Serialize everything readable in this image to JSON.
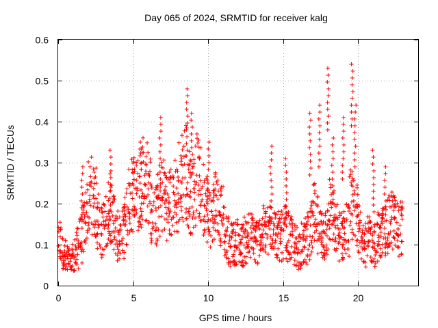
{
  "chart_data": {
    "type": "scatter",
    "title": "Day 065 of 2024, SRMTID for receiver kalg",
    "xlabel": "GPS time / hours",
    "ylabel": "SRMTID / TECUs",
    "xlim": [
      0,
      24
    ],
    "ylim": [
      0,
      0.6
    ],
    "xticks": [
      0,
      5,
      10,
      15,
      20
    ],
    "yticks": [
      0,
      0.1,
      0.2,
      0.3,
      0.4,
      0.5,
      0.6
    ],
    "xtick_labels": [
      "0",
      "5",
      "10",
      "15",
      "20"
    ],
    "ytick_labels": [
      "0",
      "0.1",
      "0.2",
      "0.3",
      "0.4",
      "0.5",
      "0.6"
    ],
    "grid": true,
    "marker": "+",
    "series": [
      {
        "name": "SRMTID",
        "color": "#ff0000",
        "x": [
          0.0,
          0.2,
          0.4,
          0.6,
          0.8,
          1.0,
          1.2,
          1.4,
          1.6,
          1.8,
          2.0,
          2.2,
          2.4,
          2.6,
          2.8,
          3.0,
          3.2,
          3.4,
          3.6,
          3.8,
          4.0,
          4.2,
          4.4,
          4.6,
          4.8,
          5.0,
          5.2,
          5.4,
          5.6,
          5.8,
          6.0,
          6.2,
          6.4,
          6.6,
          6.8,
          7.0,
          7.2,
          7.4,
          7.6,
          7.8,
          8.0,
          8.2,
          8.4,
          8.6,
          8.8,
          9.0,
          9.2,
          9.4,
          9.6,
          9.8,
          10.0,
          10.2,
          10.4,
          10.6,
          10.8,
          11.0,
          11.2,
          11.4,
          11.6,
          11.8,
          12.0,
          12.2,
          12.4,
          12.6,
          12.8,
          13.0,
          13.2,
          13.4,
          13.6,
          13.8,
          14.0,
          14.2,
          14.4,
          14.6,
          14.8,
          15.0,
          15.2,
          15.4,
          15.6,
          15.8,
          16.0,
          16.2,
          16.4,
          16.6,
          16.8,
          17.0,
          17.2,
          17.4,
          17.6,
          17.8,
          18.0,
          18.2,
          18.4,
          18.6,
          18.8,
          19.0,
          19.2,
          19.4,
          19.6,
          19.8,
          20.0,
          20.2,
          20.4,
          20.6,
          20.8,
          21.0,
          21.2,
          21.4,
          21.6,
          21.8,
          22.0,
          22.2,
          22.4,
          22.6,
          22.8
        ],
        "values": [
          0.1,
          0.08,
          0.07,
          0.06,
          0.06,
          0.07,
          0.09,
          0.11,
          0.14,
          0.18,
          0.21,
          0.22,
          0.2,
          0.16,
          0.13,
          0.15,
          0.18,
          0.19,
          0.16,
          0.12,
          0.11,
          0.13,
          0.17,
          0.2,
          0.23,
          0.24,
          0.22,
          0.25,
          0.27,
          0.26,
          0.22,
          0.18,
          0.17,
          0.19,
          0.22,
          0.22,
          0.2,
          0.2,
          0.22,
          0.21,
          0.25,
          0.27,
          0.28,
          0.24,
          0.22,
          0.24,
          0.26,
          0.24,
          0.22,
          0.19,
          0.17,
          0.18,
          0.2,
          0.2,
          0.18,
          0.14,
          0.11,
          0.1,
          0.1,
          0.11,
          0.1,
          0.1,
          0.11,
          0.12,
          0.12,
          0.11,
          0.11,
          0.12,
          0.13,
          0.13,
          0.14,
          0.15,
          0.13,
          0.12,
          0.12,
          0.13,
          0.12,
          0.11,
          0.1,
          0.1,
          0.09,
          0.1,
          0.11,
          0.12,
          0.14,
          0.17,
          0.15,
          0.13,
          0.12,
          0.13,
          0.18,
          0.16,
          0.14,
          0.12,
          0.12,
          0.13,
          0.14,
          0.2,
          0.18,
          0.17,
          0.14,
          0.12,
          0.1,
          0.11,
          0.11,
          0.1,
          0.12,
          0.12,
          0.13,
          0.14,
          0.15,
          0.16,
          0.15,
          0.14,
          0.14
        ],
        "peaks": [
          {
            "x": 1.6,
            "y": 0.29
          },
          {
            "x": 3.5,
            "y": 0.33
          },
          {
            "x": 5.5,
            "y": 0.35
          },
          {
            "x": 6.8,
            "y": 0.41
          },
          {
            "x": 8.6,
            "y": 0.48
          },
          {
            "x": 8.9,
            "y": 0.42
          },
          {
            "x": 10.0,
            "y": 0.35
          },
          {
            "x": 14.2,
            "y": 0.34
          },
          {
            "x": 15.2,
            "y": 0.31
          },
          {
            "x": 16.8,
            "y": 0.42
          },
          {
            "x": 17.4,
            "y": 0.44
          },
          {
            "x": 18.0,
            "y": 0.53
          },
          {
            "x": 18.3,
            "y": 0.36
          },
          {
            "x": 19.0,
            "y": 0.41
          },
          {
            "x": 19.6,
            "y": 0.54
          },
          {
            "x": 19.8,
            "y": 0.44
          },
          {
            "x": 21.0,
            "y": 0.33
          },
          {
            "x": 21.8,
            "y": 0.29
          }
        ]
      }
    ]
  }
}
